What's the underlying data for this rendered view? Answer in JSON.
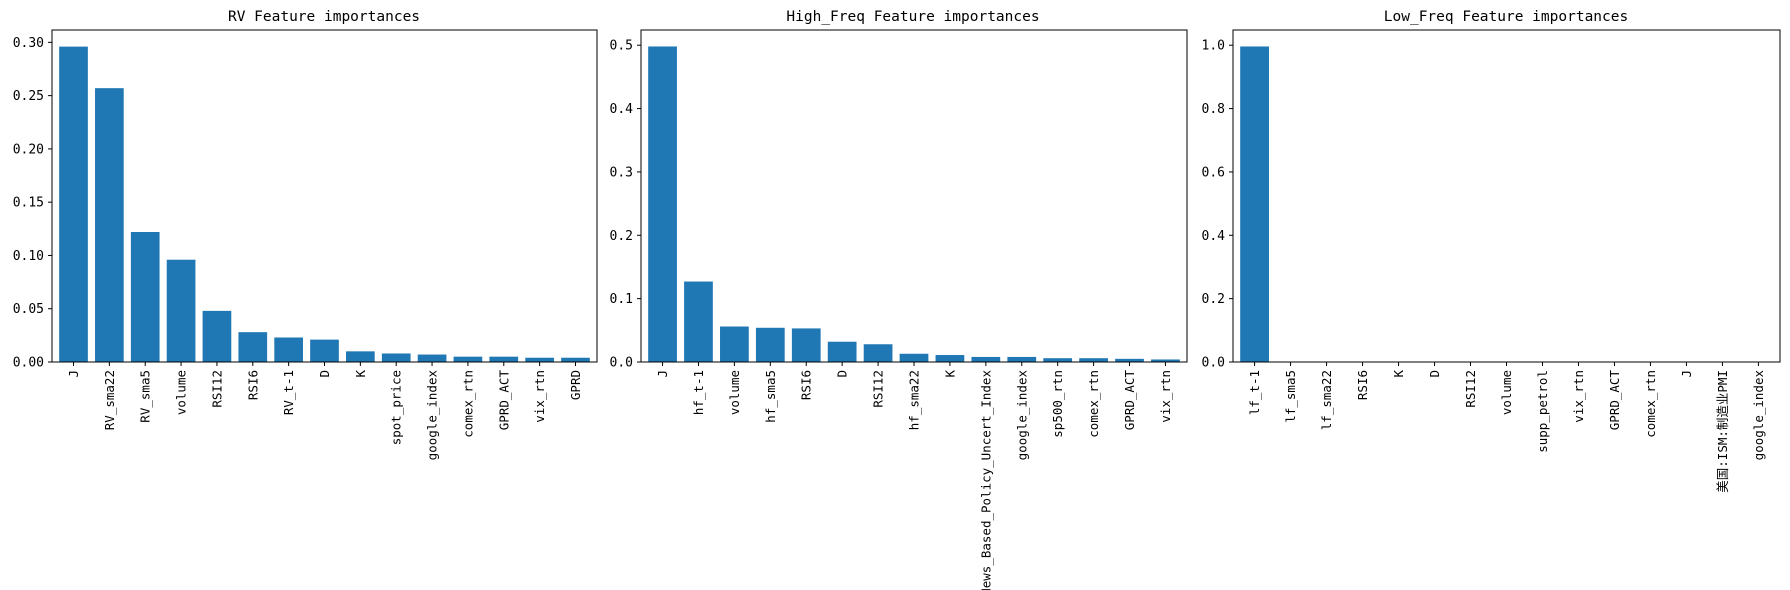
{
  "figure": {
    "bar_color": "#1f77b4"
  },
  "chart_data": [
    {
      "type": "bar",
      "title": "RV Feature importances",
      "categories": [
        "J",
        "RV_sma22",
        "RV_sma5",
        "volume",
        "RSI12",
        "RSI6",
        "RV_t-1",
        "D",
        "K",
        "spot_price",
        "google_index",
        "comex_rtn",
        "GPRD_ACT",
        "vix_rtn",
        "GPRD"
      ],
      "values": [
        0.296,
        0.257,
        0.122,
        0.096,
        0.048,
        0.028,
        0.023,
        0.021,
        0.01,
        0.008,
        0.007,
        0.005,
        0.005,
        0.004,
        0.004
      ],
      "ylim": [
        0,
        0.3116
      ],
      "yticks": [
        0.0,
        0.05,
        0.1,
        0.15,
        0.2,
        0.25,
        0.3
      ],
      "ytick_labels": [
        "0.00",
        "0.05",
        "0.10",
        "0.15",
        "0.20",
        "0.25",
        "0.30"
      ],
      "grid": false
    },
    {
      "type": "bar",
      "title": "High_Freq Feature importances",
      "categories": [
        "J",
        "hf_t-1",
        "volume",
        "hf_sma5",
        "RSI6",
        "D",
        "RSI12",
        "hf_sma22",
        "K",
        "News_Based_Policy_Uncert_Index",
        "google_index",
        "sp500_rtn",
        "comex_rtn",
        "GPRD_ACT",
        "vix_rtn"
      ],
      "values": [
        0.498,
        0.127,
        0.056,
        0.054,
        0.053,
        0.032,
        0.028,
        0.013,
        0.011,
        0.008,
        0.008,
        0.006,
        0.006,
        0.005,
        0.004
      ],
      "ylim": [
        0,
        0.524
      ],
      "yticks": [
        0.0,
        0.1,
        0.2,
        0.3,
        0.4,
        0.5
      ],
      "ytick_labels": [
        "0.0",
        "0.1",
        "0.2",
        "0.3",
        "0.4",
        "0.5"
      ],
      "grid": false
    },
    {
      "type": "bar",
      "title": "Low_Freq Feature importances",
      "categories": [
        "lf_t-1",
        "lf_sma5",
        "lf_sma22",
        "RSI6",
        "K",
        "D",
        "RSI12",
        "volume",
        "supp_petrol",
        "vix_rtn",
        "GPRD_ACT",
        "comex_rtn",
        "J",
        "美国:ISM:制造业PMI",
        "google_index"
      ],
      "values": [
        0.996,
        0.0008,
        0.0006,
        0.0005,
        0.0004,
        0.0004,
        0.0003,
        0.0003,
        0.0002,
        0.0002,
        0.0002,
        0.0001,
        0.0001,
        0.0001,
        0.0001
      ],
      "ylim": [
        0,
        1.048
      ],
      "yticks": [
        0.0,
        0.2,
        0.4,
        0.6,
        0.8,
        1.0
      ],
      "ytick_labels": [
        "0.0",
        "0.2",
        "0.4",
        "0.6",
        "0.8",
        "1.0"
      ],
      "grid": false
    }
  ]
}
